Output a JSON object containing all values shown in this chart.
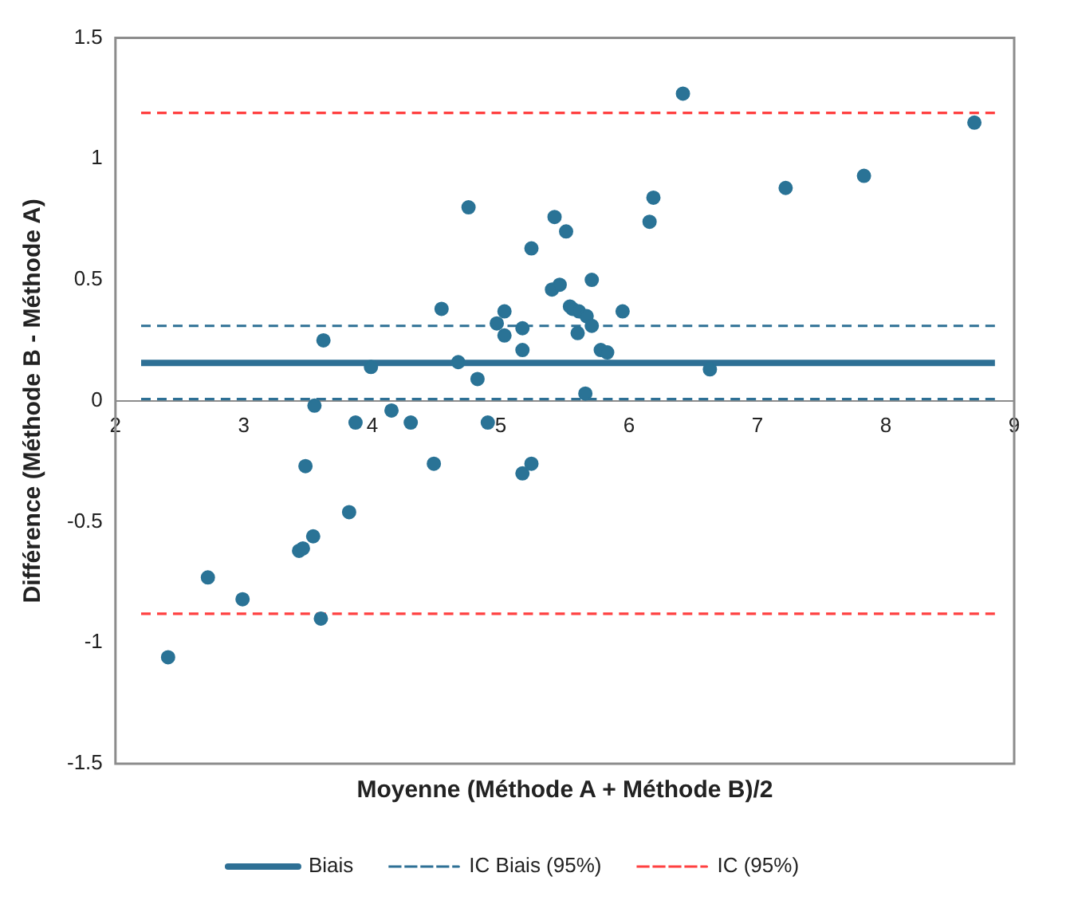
{
  "chart_data": {
    "type": "scatter",
    "xlabel": "Moyenne (Méthode A + Méthode B)/2",
    "ylabel": "Différence (Méthode B - Méthode A)",
    "xlim": [
      2,
      9
    ],
    "xticks": [
      2,
      3,
      4,
      5,
      6,
      7,
      8,
      9
    ],
    "ylim": [
      -1.5,
      1.5
    ],
    "yticks": [
      -1.5,
      -1,
      -0.5,
      0,
      0.5,
      1,
      1.5
    ],
    "grid": false,
    "legend": "bottom",
    "series": [
      {
        "type": "scatter",
        "marker": "circle",
        "color": "#2a7396",
        "x": [
          2.41,
          2.72,
          2.99,
          3.43,
          3.46,
          3.48,
          3.54,
          3.55,
          3.6,
          3.62,
          3.82,
          3.87,
          3.99,
          4.15,
          4.3,
          4.48,
          4.54,
          4.67,
          4.75,
          4.82,
          4.9,
          4.97,
          5.03,
          5.03,
          5.17,
          5.17,
          5.17,
          5.24,
          5.24,
          5.4,
          5.42,
          5.46,
          5.51,
          5.54,
          5.56,
          5.6,
          5.61,
          5.66,
          5.67,
          5.71,
          5.71,
          5.78,
          5.83,
          5.95,
          6.16,
          6.19,
          6.42,
          6.63,
          7.22,
          7.83,
          8.69
        ],
        "values": [
          -1.06,
          -0.73,
          -0.82,
          -0.62,
          -0.61,
          -0.27,
          -0.56,
          -0.02,
          -0.9,
          0.25,
          -0.46,
          -0.09,
          0.14,
          -0.04,
          -0.09,
          -0.26,
          0.38,
          0.16,
          0.8,
          0.09,
          -0.09,
          0.32,
          0.37,
          0.27,
          0.3,
          0.21,
          -0.3,
          0.63,
          -0.26,
          0.46,
          0.76,
          0.48,
          0.7,
          0.39,
          0.38,
          0.28,
          0.37,
          0.03,
          0.35,
          0.5,
          0.31,
          0.21,
          0.2,
          0.37,
          0.74,
          0.84,
          1.27,
          0.13,
          0.88,
          0.93,
          1.15
        ]
      },
      {
        "type": "line",
        "marker": "none",
        "name": "Biais",
        "color": "#2e7095",
        "line_style": "solid",
        "x": [
          2.2,
          8.85
        ],
        "values": [
          0.157,
          0.157
        ]
      },
      {
        "type": "line",
        "marker": "none",
        "name": "IC Biais (95%)",
        "color": "#2e7095",
        "line_style": "dashed",
        "x": [
          2.2,
          8.85
        ],
        "values": [
          0.31,
          0.31
        ]
      },
      {
        "type": "line",
        "marker": "none",
        "color": "#2e7095",
        "line_style": "dashed",
        "x": [
          2.2,
          8.85
        ],
        "values": [
          0.007,
          0.007
        ]
      },
      {
        "type": "line",
        "marker": "none",
        "name": "IC (95%)",
        "color": "#ff4040",
        "line_style": "dashed",
        "x": [
          2.2,
          8.85
        ],
        "values": [
          1.19,
          1.19
        ]
      },
      {
        "type": "line",
        "marker": "none",
        "color": "#ff4040",
        "line_style": "dashed",
        "x": [
          2.2,
          8.85
        ],
        "values": [
          -0.88,
          -0.88
        ]
      }
    ]
  }
}
